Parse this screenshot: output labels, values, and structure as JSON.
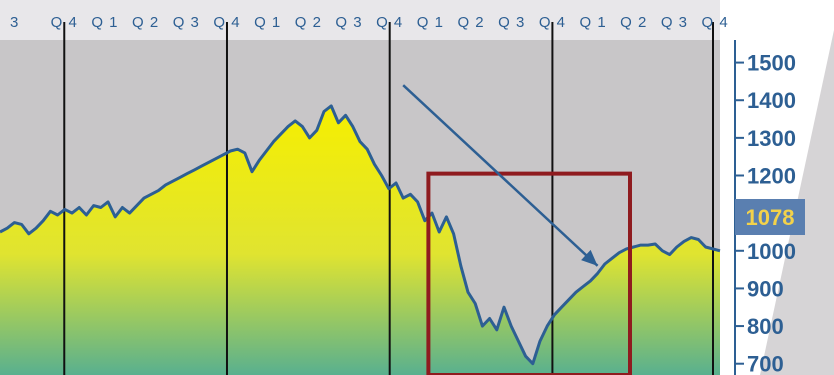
{
  "chart_data": {
    "type": "area",
    "x_axis_quarter_labels": [
      "3",
      "Q4",
      "Q1",
      "Q2",
      "Q3",
      "Q4",
      "Q1",
      "Q2",
      "Q3",
      "Q4",
      "Q1",
      "Q2",
      "Q3",
      "Q4",
      "Q1",
      "Q2",
      "Q3",
      "Q4"
    ],
    "y_ticks": [
      700,
      800,
      900,
      1000,
      1100,
      1200,
      1300,
      1400,
      1500
    ],
    "y_tick_labels": [
      "700",
      "800",
      "900",
      "1000",
      "",
      "1200",
      "1300",
      "1400",
      "1500"
    ],
    "ylim": [
      670,
      1560
    ],
    "callout_value": "1078",
    "series_points": [
      [
        0.0,
        1050
      ],
      [
        0.01,
        1060
      ],
      [
        0.02,
        1075
      ],
      [
        0.03,
        1070
      ],
      [
        0.04,
        1045
      ],
      [
        0.05,
        1060
      ],
      [
        0.06,
        1080
      ],
      [
        0.07,
        1105
      ],
      [
        0.08,
        1095
      ],
      [
        0.09,
        1110
      ],
      [
        0.1,
        1100
      ],
      [
        0.11,
        1115
      ],
      [
        0.12,
        1095
      ],
      [
        0.13,
        1120
      ],
      [
        0.14,
        1115
      ],
      [
        0.15,
        1130
      ],
      [
        0.16,
        1090
      ],
      [
        0.17,
        1115
      ],
      [
        0.18,
        1100
      ],
      [
        0.19,
        1120
      ],
      [
        0.2,
        1140
      ],
      [
        0.21,
        1150
      ],
      [
        0.22,
        1160
      ],
      [
        0.23,
        1175
      ],
      [
        0.24,
        1185
      ],
      [
        0.25,
        1195
      ],
      [
        0.26,
        1205
      ],
      [
        0.27,
        1215
      ],
      [
        0.28,
        1225
      ],
      [
        0.29,
        1235
      ],
      [
        0.3,
        1245
      ],
      [
        0.31,
        1255
      ],
      [
        0.32,
        1265
      ],
      [
        0.33,
        1270
      ],
      [
        0.34,
        1260
      ],
      [
        0.35,
        1210
      ],
      [
        0.36,
        1240
      ],
      [
        0.37,
        1265
      ],
      [
        0.38,
        1290
      ],
      [
        0.39,
        1310
      ],
      [
        0.4,
        1330
      ],
      [
        0.41,
        1345
      ],
      [
        0.42,
        1330
      ],
      [
        0.43,
        1300
      ],
      [
        0.44,
        1320
      ],
      [
        0.45,
        1370
      ],
      [
        0.46,
        1385
      ],
      [
        0.47,
        1340
      ],
      [
        0.48,
        1360
      ],
      [
        0.49,
        1330
      ],
      [
        0.5,
        1290
      ],
      [
        0.51,
        1270
      ],
      [
        0.52,
        1230
      ],
      [
        0.53,
        1200
      ],
      [
        0.54,
        1165
      ],
      [
        0.55,
        1180
      ],
      [
        0.56,
        1140
      ],
      [
        0.57,
        1150
      ],
      [
        0.58,
        1130
      ],
      [
        0.59,
        1080
      ],
      [
        0.6,
        1100
      ],
      [
        0.61,
        1050
      ],
      [
        0.62,
        1090
      ],
      [
        0.63,
        1045
      ],
      [
        0.64,
        960
      ],
      [
        0.65,
        890
      ],
      [
        0.66,
        860
      ],
      [
        0.67,
        800
      ],
      [
        0.68,
        820
      ],
      [
        0.69,
        790
      ],
      [
        0.7,
        850
      ],
      [
        0.71,
        800
      ],
      [
        0.72,
        760
      ],
      [
        0.73,
        720
      ],
      [
        0.74,
        700
      ],
      [
        0.75,
        760
      ],
      [
        0.76,
        800
      ],
      [
        0.77,
        830
      ],
      [
        0.78,
        850
      ],
      [
        0.79,
        870
      ],
      [
        0.8,
        890
      ],
      [
        0.81,
        905
      ],
      [
        0.82,
        920
      ],
      [
        0.83,
        940
      ],
      [
        0.84,
        965
      ],
      [
        0.85,
        980
      ],
      [
        0.86,
        995
      ],
      [
        0.87,
        1005
      ],
      [
        0.88,
        1010
      ],
      [
        0.89,
        1015
      ],
      [
        0.9,
        1015
      ],
      [
        0.91,
        1018
      ],
      [
        0.92,
        1000
      ],
      [
        0.93,
        990
      ],
      [
        0.94,
        1010
      ],
      [
        0.95,
        1025
      ],
      [
        0.96,
        1035
      ],
      [
        0.97,
        1030
      ],
      [
        0.98,
        1010
      ],
      [
        1.0,
        1000
      ]
    ],
    "annotations": {
      "trend_arrow": {
        "from": [
          0.56,
          1440
        ],
        "to": [
          0.83,
          960
        ]
      },
      "highlight_box": {
        "x_range": [
          0.595,
          0.875
        ],
        "y_range": [
          670,
          1205
        ]
      }
    },
    "colors": {
      "plot_bg": "#c8c6c8",
      "line": "#2d5f93",
      "area_top": "#f6ef00",
      "area_bottom": "#59b08f",
      "highlight": "#8f1b1f",
      "axis_text": "#2d5f93",
      "callout_bg": "#5a7fb0",
      "callout_text": "#f3d24a"
    },
    "grid": false,
    "legend": "none"
  }
}
